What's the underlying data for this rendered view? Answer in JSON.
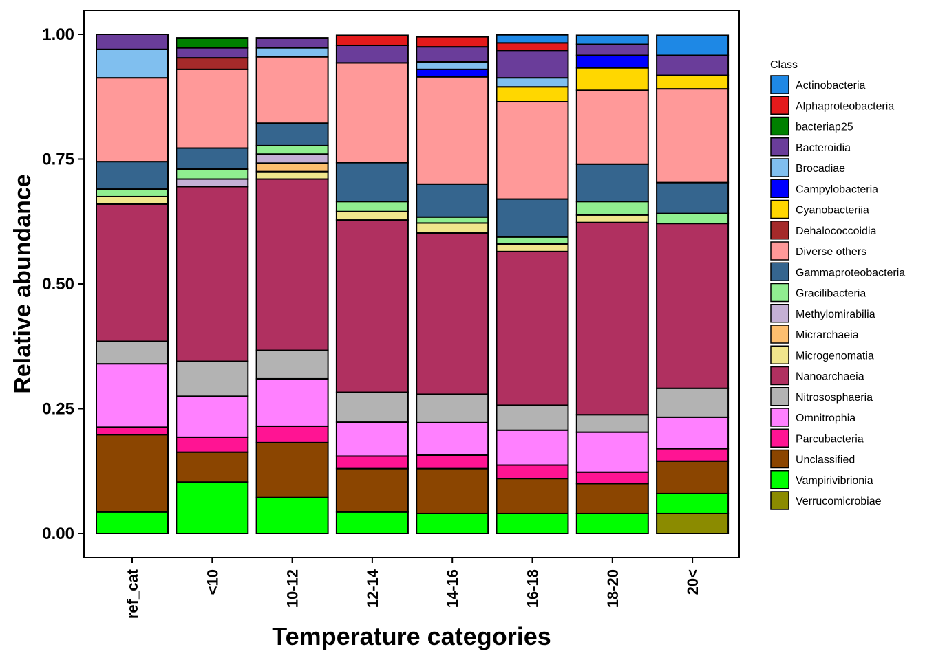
{
  "chart_data": {
    "type": "bar",
    "stacked": true,
    "title": "",
    "xlabel": "Temperature categories",
    "ylabel": "Relative abundance",
    "ylim": [
      0,
      1
    ],
    "yticks": [
      "0.00",
      "0.25",
      "0.50",
      "0.75",
      "1.00"
    ],
    "ytick_values": [
      0,
      0.25,
      0.5,
      0.75,
      1.0
    ],
    "grid": false,
    "legend_title": "Class",
    "legend_position": "right",
    "categories": [
      "ref_cat",
      "<10",
      "10-12",
      "12-14",
      "14-16",
      "16-18",
      "18-20",
      "20<"
    ],
    "stack_order_bottom_to_top": [
      "Verrucomicrobiae",
      "Vampirivibrionia",
      "Unclassified",
      "Parcubacteria",
      "Omnitrophia",
      "Nitrososphaeria",
      "Nanoarchaeia",
      "Microgenomatia",
      "Micrarchaeia",
      "Methylomirabilia",
      "Gracilibacteria",
      "Gammaproteobacteria",
      "Diverse others",
      "Dehalococcoidia",
      "Cyanobacteriia",
      "Campylobacteria",
      "Brocadiae",
      "Bacteroidia",
      "bacteriap25",
      "Alphaproteobacteria",
      "Actinobacteria"
    ],
    "series": [
      {
        "name": "Actinobacteria",
        "color": "#1E88E5",
        "values": [
          0,
          0,
          0,
          0,
          0,
          0.016,
          0.018,
          0.04
        ]
      },
      {
        "name": "Alphaproteobacteria",
        "color": "#E41A1C",
        "values": [
          0,
          0,
          0,
          0.02,
          0.02,
          0.015,
          0,
          0
        ]
      },
      {
        "name": "bacteriap25",
        "color": "#008000",
        "values": [
          0,
          0.02,
          0,
          0,
          0,
          0,
          0,
          0
        ]
      },
      {
        "name": "Bacteroidia",
        "color": "#6A3D9A",
        "values": [
          0.03,
          0.02,
          0.02,
          0.035,
          0.03,
          0.055,
          0.022,
          0.04
        ]
      },
      {
        "name": "Brocadiae",
        "color": "#80BFEF",
        "values": [
          0.057,
          0,
          0.018,
          0,
          0.015,
          0.018,
          0,
          0
        ]
      },
      {
        "name": "Campylobacteria",
        "color": "#0000FF",
        "values": [
          0,
          0,
          0,
          0,
          0.015,
          0,
          0.025,
          0
        ]
      },
      {
        "name": "Cyanobacteriia",
        "color": "#FFD700",
        "values": [
          0,
          0,
          0,
          0,
          0,
          0.03,
          0.045,
          0.027
        ]
      },
      {
        "name": "Dehalococcoidia",
        "color": "#A52A2A",
        "values": [
          0,
          0.023,
          0,
          0,
          0,
          0,
          0,
          0
        ]
      },
      {
        "name": "Diverse others",
        "color": "#FF9999",
        "values": [
          0.168,
          0.158,
          0.133,
          0.2,
          0.215,
          0.195,
          0.148,
          0.188
        ]
      },
      {
        "name": "Gammaproteobacteria",
        "color": "#35658E",
        "values": [
          0.055,
          0.042,
          0.045,
          0.078,
          0.066,
          0.076,
          0.075,
          0.062
        ]
      },
      {
        "name": "Gracilibacteria",
        "color": "#90EE90",
        "values": [
          0.015,
          0.02,
          0.017,
          0.02,
          0.012,
          0.014,
          0.027,
          0.02
        ]
      },
      {
        "name": "Methylomirabilia",
        "color": "#C5B0D5",
        "values": [
          0,
          0.015,
          0.018,
          0,
          0,
          0,
          0,
          0
        ]
      },
      {
        "name": "Micrarchaeia",
        "color": "#FDBF6F",
        "values": [
          0,
          0,
          0.017,
          0,
          0,
          0,
          0,
          0
        ]
      },
      {
        "name": "Microgenomatia",
        "color": "#F0E68C",
        "values": [
          0.015,
          0,
          0.015,
          0.017,
          0.02,
          0.015,
          0.015,
          0
        ]
      },
      {
        "name": "Nanoarchaeia",
        "color": "#B03060",
        "values": [
          0.275,
          0.35,
          0.343,
          0.345,
          0.323,
          0.308,
          0.385,
          0.33
        ]
      },
      {
        "name": "Nitrososphaeria",
        "color": "#B3B3B3",
        "values": [
          0.045,
          0.07,
          0.057,
          0.06,
          0.057,
          0.05,
          0.035,
          0.058
        ]
      },
      {
        "name": "Omnitrophia",
        "color": "#FF80FF",
        "values": [
          0.127,
          0.082,
          0.095,
          0.068,
          0.065,
          0.07,
          0.08,
          0.063
        ]
      },
      {
        "name": "Parcubacteria",
        "color": "#FF1493",
        "values": [
          0.015,
          0.03,
          0.033,
          0.025,
          0.027,
          0.027,
          0.023,
          0.025
        ]
      },
      {
        "name": "Unclassified",
        "color": "#8B4500",
        "values": [
          0.155,
          0.06,
          0.11,
          0.087,
          0.09,
          0.07,
          0.06,
          0.065
        ]
      },
      {
        "name": "Vampirivibrionia",
        "color": "#00FF00",
        "values": [
          0.043,
          0.103,
          0.072,
          0.043,
          0.04,
          0.04,
          0.04,
          0.04
        ]
      },
      {
        "name": "Verrucomicrobiae",
        "color": "#8B8B00",
        "values": [
          0,
          0,
          0,
          0,
          0,
          0,
          0,
          0.04
        ]
      }
    ]
  }
}
